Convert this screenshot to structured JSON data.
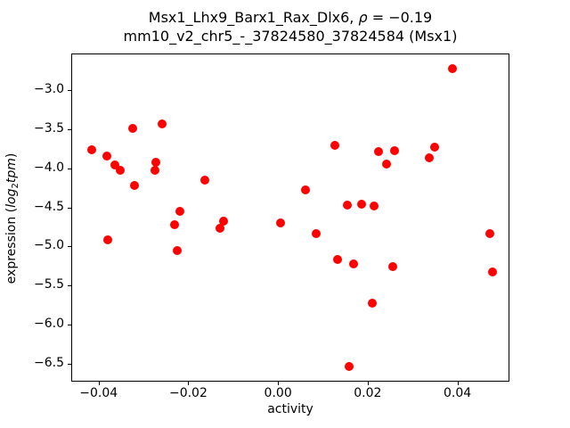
{
  "title": {
    "line1_prefix": "Msx1_Lhx9_Barx1_Rax_Dlx6, ",
    "rho": "ρ",
    "line1_eq": " = −0.19",
    "line2": "mm10_v2_chr5_-_37824580_37824584 (Msx1)"
  },
  "ylabel_parts": {
    "prefix": "expression (",
    "log_word": "log",
    "log_sub": "2",
    "tpm_word": "tpm",
    "suffix": ")"
  },
  "chart_data": {
    "type": "scatter",
    "title": "Msx1_Lhx9_Barx1_Rax_Dlx6, ρ = −0.19",
    "subtitle": "mm10_v2_chr5_-_37824580_37824584 (Msx1)",
    "correlation": "−0.19",
    "xlabel": "activity",
    "ylabel": "expression (log2 tpm)",
    "xlim": [
      -0.0461,
      0.0516
    ],
    "ylim": [
      -6.73,
      -2.53
    ],
    "xticks": [
      -0.04,
      -0.02,
      0,
      0.02,
      0.04
    ],
    "xtick_labels": [
      "−0.04",
      "−0.02",
      "0.00",
      "0.02",
      "0.04"
    ],
    "yticks": [
      -3.0,
      -3.5,
      -4.0,
      -4.5,
      -5.0,
      -5.5,
      -6.0,
      -6.5
    ],
    "ytick_labels": [
      "−3.0",
      "−3.5",
      "−4.0",
      "−4.5",
      "−5.0",
      "−5.5",
      "−6.0",
      "−6.5"
    ],
    "grid": false,
    "legend": false,
    "marker_color": "#ff0000",
    "points": [
      [
        -0.0323,
        -3.49
      ],
      [
        -0.0259,
        -3.43
      ],
      [
        -0.0416,
        -3.76
      ],
      [
        -0.0382,
        -3.84
      ],
      [
        -0.0363,
        -3.96
      ],
      [
        -0.0352,
        -4.02
      ],
      [
        -0.0273,
        -3.92
      ],
      [
        -0.0275,
        -4.03
      ],
      [
        -0.0164,
        -4.15
      ],
      [
        -0.032,
        -4.22
      ],
      [
        -0.0218,
        -4.55
      ],
      [
        -0.023,
        -4.72
      ],
      [
        -0.0379,
        -4.91
      ],
      [
        -0.0224,
        -5.05
      ],
      [
        -0.0122,
        -4.68
      ],
      [
        -0.0129,
        -4.77
      ],
      [
        0.0005,
        -4.7
      ],
      [
        0.0389,
        -2.72
      ],
      [
        0.0127,
        -3.71
      ],
      [
        0.0225,
        -3.79
      ],
      [
        0.0259,
        -3.77
      ],
      [
        0.0349,
        -3.73
      ],
      [
        0.0337,
        -3.87
      ],
      [
        0.0241,
        -3.95
      ],
      [
        0.0061,
        -4.28
      ],
      [
        0.0155,
        -4.47
      ],
      [
        0.0187,
        -4.46
      ],
      [
        0.0215,
        -4.48
      ],
      [
        0.0085,
        -4.83
      ],
      [
        0.0133,
        -5.17
      ],
      [
        0.0168,
        -5.22
      ],
      [
        0.0255,
        -5.26
      ],
      [
        0.0472,
        -4.83
      ],
      [
        0.0478,
        -5.33
      ],
      [
        0.021,
        -5.73
      ],
      [
        0.0159,
        -6.54
      ]
    ]
  }
}
